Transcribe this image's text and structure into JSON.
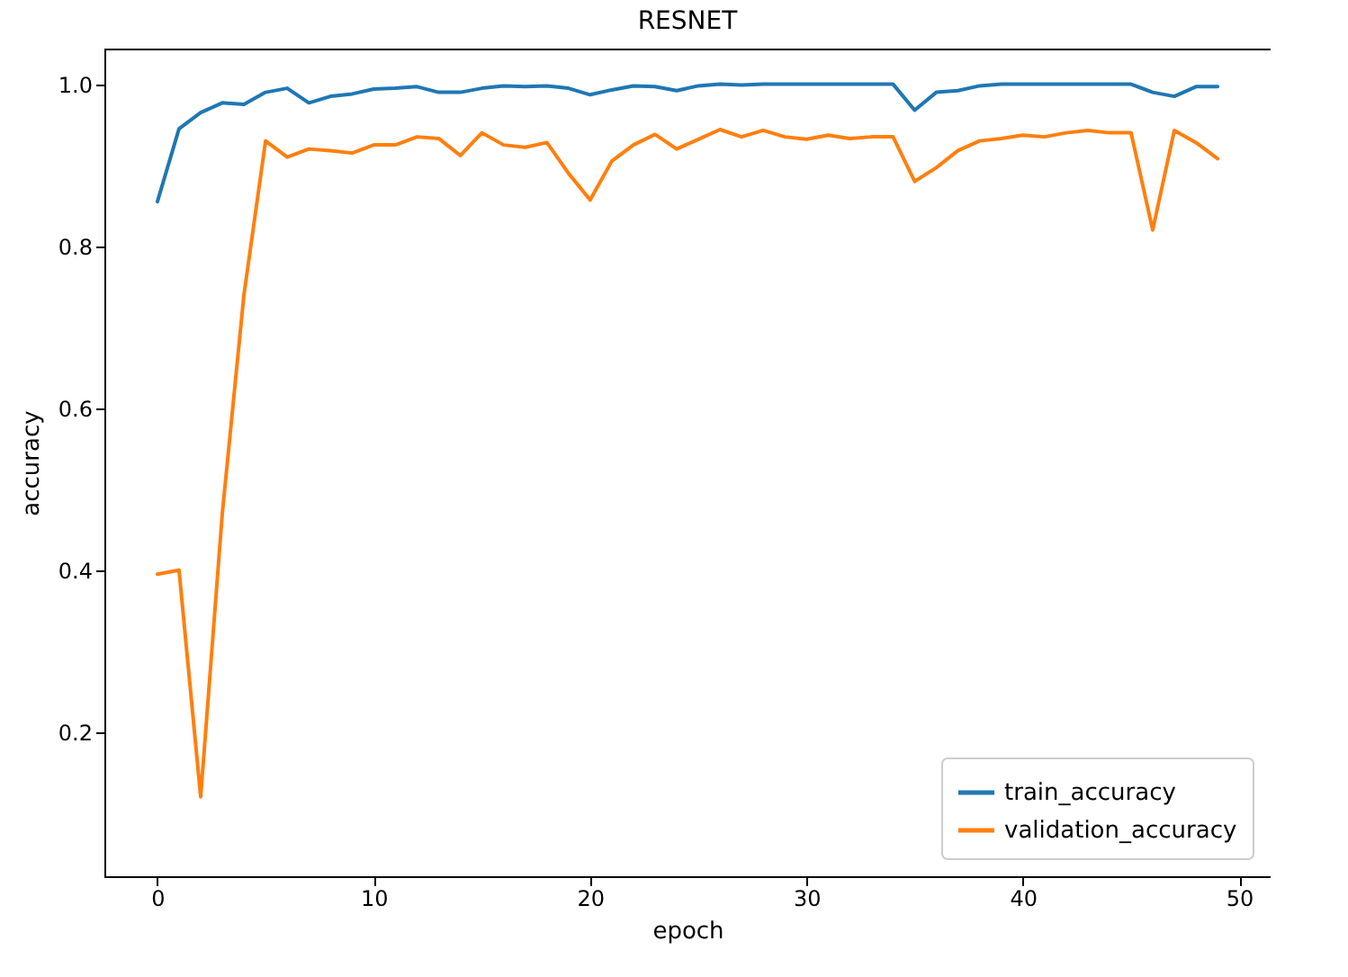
{
  "chart_data": {
    "type": "line",
    "title": "RESNET",
    "xlabel": "epoch",
    "ylabel": "accuracy",
    "x": [
      0,
      1,
      2,
      3,
      4,
      5,
      6,
      7,
      8,
      9,
      10,
      11,
      12,
      13,
      14,
      15,
      16,
      17,
      18,
      19,
      20,
      21,
      22,
      23,
      24,
      25,
      26,
      27,
      28,
      29,
      30,
      31,
      32,
      33,
      34,
      35,
      36,
      37,
      38,
      39,
      40,
      41,
      42,
      43,
      44,
      45,
      46,
      47,
      48,
      49
    ],
    "series": [
      {
        "name": "train_accuracy",
        "color": "#1f77b4",
        "values": [
          0.855,
          0.945,
          0.965,
          0.977,
          0.975,
          0.99,
          0.995,
          0.977,
          0.985,
          0.988,
          0.994,
          0.995,
          0.997,
          0.99,
          0.99,
          0.995,
          0.998,
          0.997,
          0.998,
          0.995,
          0.987,
          0.993,
          0.998,
          0.997,
          0.992,
          0.998,
          1.0,
          0.999,
          1.0,
          1.0,
          1.0,
          1.0,
          1.0,
          1.0,
          1.0,
          0.968,
          0.99,
          0.992,
          0.998,
          1.0,
          1.0,
          1.0,
          1.0,
          1.0,
          1.0,
          1.0,
          0.99,
          0.985,
          0.997,
          0.997
        ]
      },
      {
        "name": "validation_accuracy",
        "color": "#ff7f0e",
        "values": [
          0.395,
          0.4,
          0.12,
          0.47,
          0.74,
          0.93,
          0.91,
          0.92,
          0.918,
          0.915,
          0.925,
          0.925,
          0.935,
          0.933,
          0.912,
          0.94,
          0.925,
          0.922,
          0.928,
          0.89,
          0.857,
          0.905,
          0.925,
          0.938,
          0.92,
          0.932,
          0.944,
          0.935,
          0.943,
          0.935,
          0.932,
          0.937,
          0.933,
          0.935,
          0.935,
          0.88,
          0.897,
          0.918,
          0.93,
          0.933,
          0.937,
          0.935,
          0.94,
          0.943,
          0.94,
          0.94,
          0.82,
          0.943,
          0.928,
          0.908
        ]
      }
    ],
    "xlim": [
      -2.45,
      51.45
    ],
    "xticks": [
      0,
      10,
      20,
      30,
      40,
      50
    ],
    "ylim": [
      0.022,
      1.044
    ],
    "yticks": [
      0.2,
      0.4,
      0.6,
      0.8,
      {
        "value": 1,
        "label": "1.0"
      }
    ],
    "legend": "bottom right",
    "grid": false
  }
}
